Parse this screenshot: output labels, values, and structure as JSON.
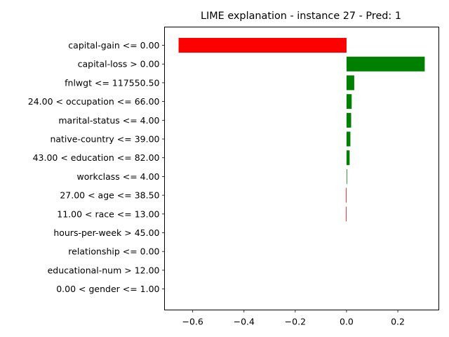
{
  "chart_data": {
    "type": "bar",
    "orientation": "horizontal",
    "title": "LIME explanation - instance 27 - Pred: 1",
    "xlabel": "",
    "ylabel": "",
    "xlim": [
      -0.71,
      0.36
    ],
    "xticks": [
      -0.6,
      -0.4,
      -0.2,
      0.0,
      0.2
    ],
    "xtick_labels": [
      "−0.6",
      "−0.4",
      "−0.2",
      "0.0",
      "0.2"
    ],
    "grid": false,
    "legend": "none",
    "positive_color": "#008000",
    "negative_color": "#ff0000",
    "categories": [
      "capital-gain <= 0.00",
      "capital-loss > 0.00",
      "fnlwgt <= 117550.50",
      "24.00 < occupation <= 66.00",
      "marital-status <= 4.00",
      "native-country <= 39.00",
      "43.00 < education <= 82.00",
      "workclass <= 4.00",
      "27.00 < age <= 38.50",
      "11.00 < race <= 13.00",
      "hours-per-week > 45.00",
      "relationship <= 0.00",
      "educational-num > 12.00",
      "0.00 < gender <= 1.00"
    ],
    "values": [
      -0.655,
      0.305,
      0.03,
      0.02,
      0.018,
      0.015,
      0.012,
      0.002,
      -0.002,
      -0.002,
      0.0,
      0.0,
      0.0,
      0.0
    ]
  }
}
